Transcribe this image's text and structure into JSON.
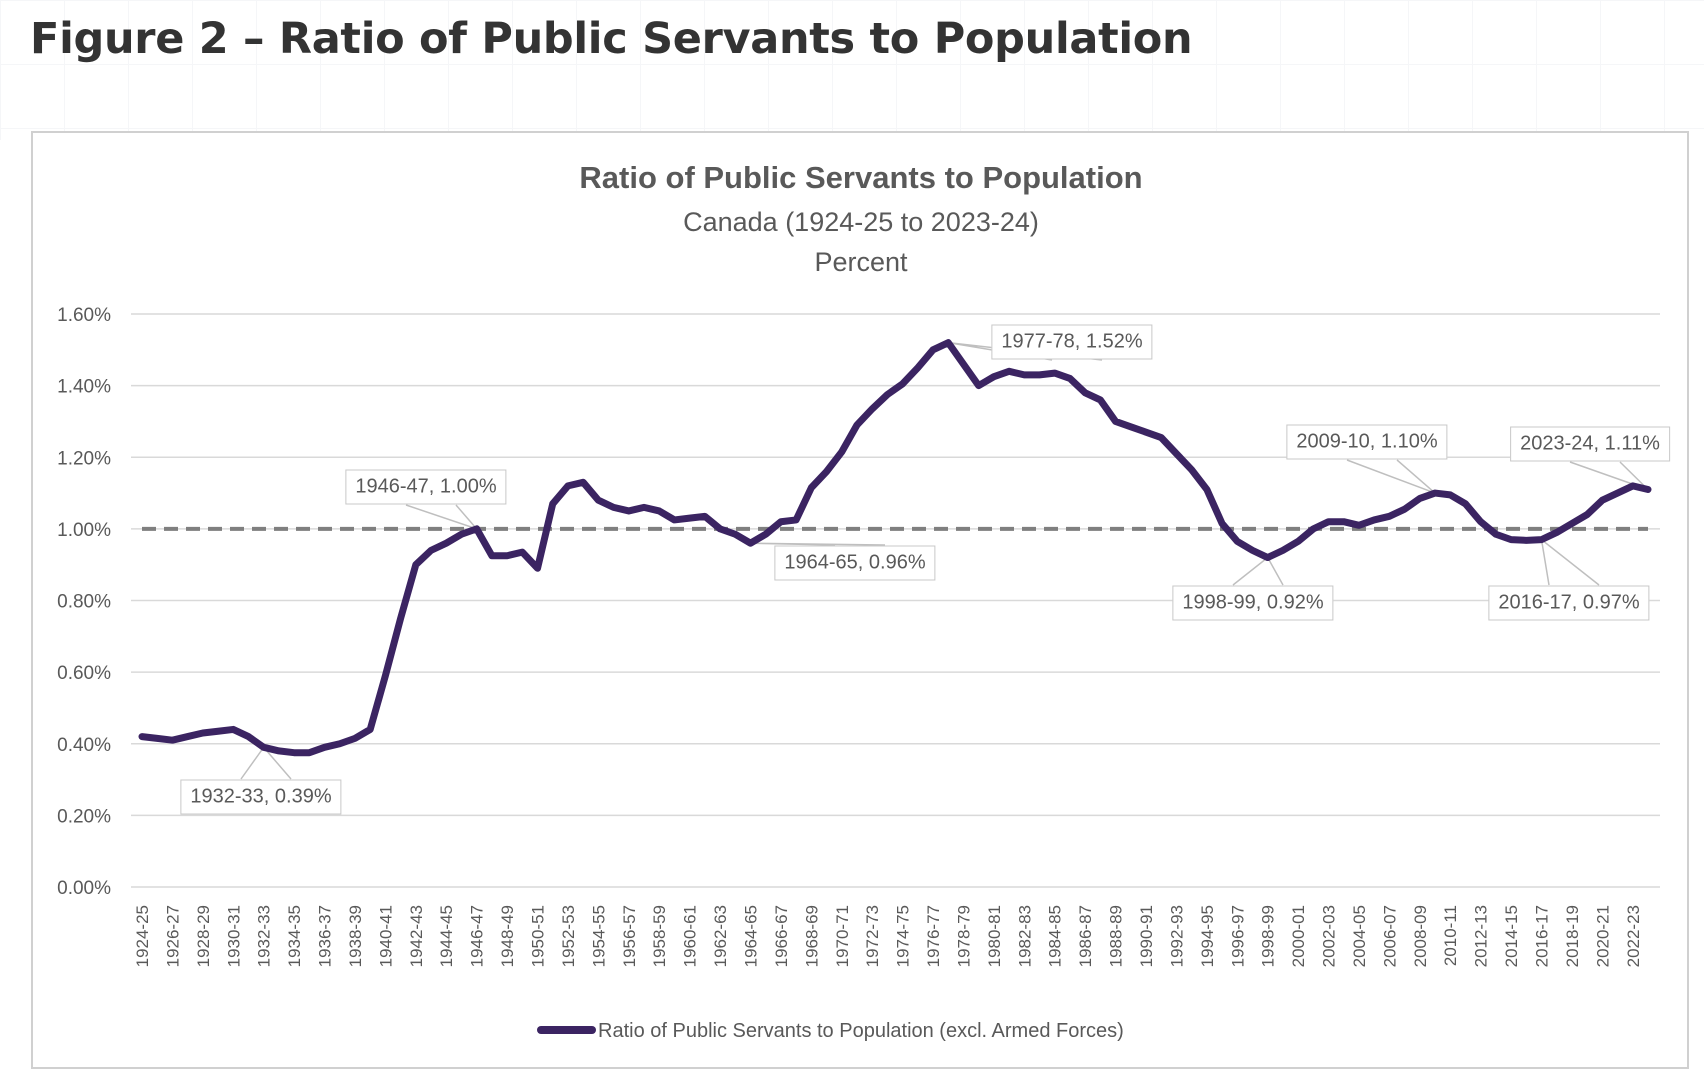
{
  "figure_title": "Figure 2 – Ratio of Public Servants to Population",
  "chart_data": {
    "type": "line",
    "title": "Ratio of Public Servants to Population",
    "subtitle": "Canada (1924-25 to 2023-24)",
    "unit_label": "Percent",
    "xlabel": "",
    "ylabel": "",
    "ylim": [
      0,
      1.6
    ],
    "y_ticks": [
      0,
      0.2,
      0.4,
      0.6,
      0.8,
      1.0,
      1.2,
      1.4,
      1.6
    ],
    "y_tick_labels": [
      "0.00%",
      "0.20%",
      "0.40%",
      "0.60%",
      "0.80%",
      "1.00%",
      "1.20%",
      "1.40%",
      "1.60%"
    ],
    "grid": true,
    "legend_position": "bottom",
    "reference_line": {
      "value": 1.0,
      "style": "dashed",
      "color": "#7f7f7f"
    },
    "categories": [
      "1924-25",
      "1925-26",
      "1926-27",
      "1927-28",
      "1928-29",
      "1929-30",
      "1930-31",
      "1931-32",
      "1932-33",
      "1933-34",
      "1934-35",
      "1935-36",
      "1936-37",
      "1937-38",
      "1938-39",
      "1939-40",
      "1940-41",
      "1941-42",
      "1942-43",
      "1943-44",
      "1944-45",
      "1945-46",
      "1946-47",
      "1947-48",
      "1948-49",
      "1949-50",
      "1950-51",
      "1951-52",
      "1952-53",
      "1953-54",
      "1954-55",
      "1955-56",
      "1956-57",
      "1957-58",
      "1958-59",
      "1959-60",
      "1960-61",
      "1961-62",
      "1962-63",
      "1963-64",
      "1964-65",
      "1965-66",
      "1966-67",
      "1967-68",
      "1968-69",
      "1969-70",
      "1970-71",
      "1971-72",
      "1972-73",
      "1973-74",
      "1974-75",
      "1975-76",
      "1976-77",
      "1977-78",
      "1978-79",
      "1979-80",
      "1980-81",
      "1981-82",
      "1982-83",
      "1983-84",
      "1984-85",
      "1985-86",
      "1986-87",
      "1987-88",
      "1988-89",
      "1989-90",
      "1990-91",
      "1991-92",
      "1992-93",
      "1993-94",
      "1994-95",
      "1995-96",
      "1996-97",
      "1997-98",
      "1998-99",
      "1999-00",
      "2000-01",
      "2001-02",
      "2002-03",
      "2003-04",
      "2004-05",
      "2005-06",
      "2006-07",
      "2007-08",
      "2008-09",
      "2009-10",
      "2010-11",
      "2011-12",
      "2012-13",
      "2013-14",
      "2014-15",
      "2015-16",
      "2016-17",
      "2017-18",
      "2018-19",
      "2019-20",
      "2020-21",
      "2021-22",
      "2022-23",
      "2023-24"
    ],
    "series": [
      {
        "name": "Ratio of Public Servants to Population (excl. Armed Forces)",
        "color": "#3b2462",
        "values": [
          0.42,
          0.415,
          0.41,
          0.42,
          0.43,
          0.435,
          0.44,
          0.42,
          0.39,
          0.38,
          0.375,
          0.375,
          0.39,
          0.4,
          0.415,
          0.44,
          0.59,
          0.75,
          0.9,
          0.94,
          0.96,
          0.985,
          1.0,
          0.925,
          0.925,
          0.935,
          0.89,
          1.07,
          1.12,
          1.13,
          1.08,
          1.06,
          1.05,
          1.06,
          1.05,
          1.025,
          1.03,
          1.035,
          1.0,
          0.985,
          0.96,
          0.985,
          1.02,
          1.025,
          1.115,
          1.16,
          1.215,
          1.29,
          1.335,
          1.375,
          1.405,
          1.45,
          1.5,
          1.52,
          1.46,
          1.4,
          1.425,
          1.44,
          1.43,
          1.43,
          1.435,
          1.42,
          1.38,
          1.36,
          1.3,
          1.285,
          1.27,
          1.255,
          1.21,
          1.165,
          1.11,
          1.015,
          0.965,
          0.94,
          0.92,
          0.94,
          0.965,
          1.0,
          1.02,
          1.02,
          1.01,
          1.025,
          1.035,
          1.055,
          1.085,
          1.1,
          1.095,
          1.07,
          1.02,
          0.985,
          0.97,
          0.968,
          0.97,
          0.99,
          1.015,
          1.04,
          1.08,
          1.1,
          1.12,
          1.11
        ]
      }
    ],
    "annotations": [
      {
        "category": "1932-33",
        "value": 0.39,
        "label": "1932-33, 0.39%"
      },
      {
        "category": "1946-47",
        "value": 1.0,
        "label": "1946-47, 1.00%"
      },
      {
        "category": "1964-65",
        "value": 0.96,
        "label": "1964-65, 0.96%"
      },
      {
        "category": "1977-78",
        "value": 1.52,
        "label": "1977-78, 1.52%"
      },
      {
        "category": "1998-99",
        "value": 0.92,
        "label": "1998-99, 0.92%"
      },
      {
        "category": "2009-10",
        "value": 1.1,
        "label": "2009-10, 1.10%"
      },
      {
        "category": "2016-17",
        "value": 0.97,
        "label": "2016-17, 0.97%"
      },
      {
        "category": "2023-24",
        "value": 1.11,
        "label": "2023-24, 1.11%"
      }
    ]
  }
}
